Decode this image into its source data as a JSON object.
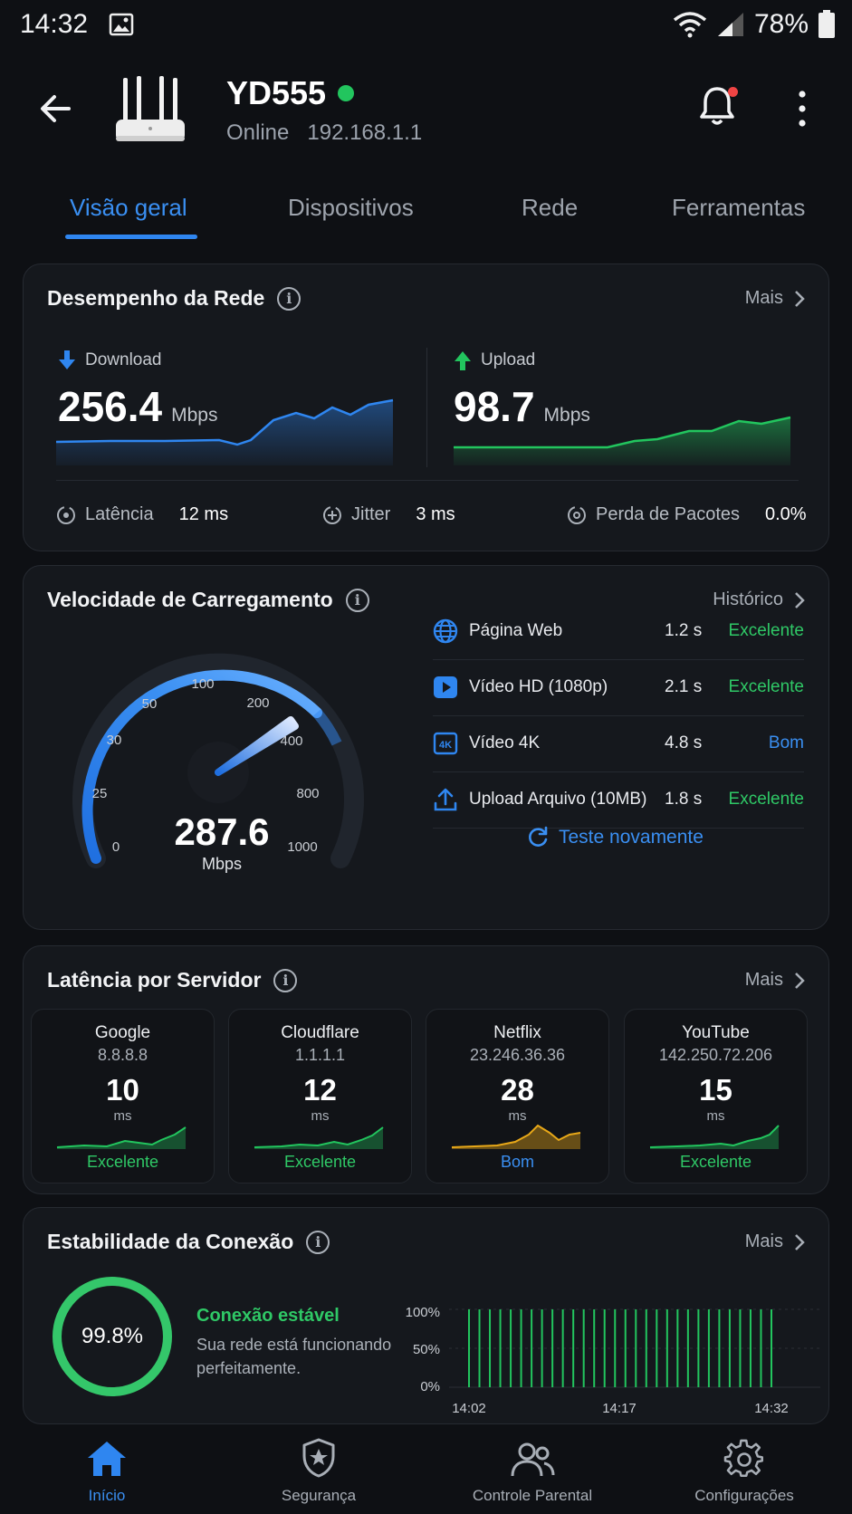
{
  "status_bar": {
    "time": "14:32",
    "battery": "78%"
  },
  "device": {
    "name": "YD555",
    "state": "Online",
    "ip": "192.168.1.1"
  },
  "tabs": [
    {
      "label": "Visão geral",
      "active": true
    },
    {
      "label": "Dispositivos"
    },
    {
      "label": "Rede"
    },
    {
      "label": "Ferramentas"
    }
  ],
  "performance": {
    "title": "Desempenho da Rede",
    "link": "Mais",
    "download": {
      "label": "Download",
      "value": "256.4",
      "unit": "Mbps"
    },
    "upload": {
      "label": "Upload",
      "value": "98.7",
      "unit": "Mbps"
    },
    "latency": {
      "label": "Latência",
      "value": "12 ms"
    },
    "jitter": {
      "label": "Jitter",
      "value": "3 ms"
    },
    "loss": {
      "label": "Perda de Pacotes",
      "value": "0.0%"
    }
  },
  "load_speed": {
    "title": "Velocidade de Carregamento",
    "link": "Histórico",
    "gauge": {
      "value": "287.6",
      "unit": "Mbps",
      "ticks": [
        "0",
        "25",
        "30",
        "50",
        "100",
        "200",
        "400",
        "800",
        "1000"
      ]
    },
    "rows": [
      {
        "label": "Página Web",
        "time": "1.2 s",
        "rating": "Excelente",
        "icon": "globe-icon"
      },
      {
        "label": "Vídeo HD (1080p)",
        "time": "2.1 s",
        "rating": "Excelente",
        "icon": "play-icon"
      },
      {
        "label": "Vídeo 4K",
        "time": "4.8 s",
        "rating": "Bom",
        "icon": "4k-icon"
      },
      {
        "label": "Upload Arquivo (10MB)",
        "time": "1.8 s",
        "rating": "Excelente",
        "icon": "upload-icon"
      }
    ],
    "retry": "Teste novamente"
  },
  "servers": {
    "title": "Latência por Servidor",
    "link": "Mais",
    "items": [
      {
        "name": "Google",
        "ip": "8.8.8.8",
        "ms": "10",
        "unit": "ms",
        "rating": "Excelente"
      },
      {
        "name": "Cloudflare",
        "ip": "1.1.1.1",
        "ms": "12",
        "unit": "ms",
        "rating": "Excelente"
      },
      {
        "name": "Netflix",
        "ip": "23.246.36.36",
        "ms": "28",
        "unit": "ms",
        "rating": "Bom"
      },
      {
        "name": "YouTube",
        "ip": "142.250.72.206",
        "ms": "15",
        "unit": "ms",
        "rating": "Excelente"
      }
    ]
  },
  "stability": {
    "title": "Estabilidade da Conexão",
    "link": "Mais",
    "value": "99.8%",
    "level": 0.998,
    "status": "Conexão estável",
    "description": "Sua rede está funcionando perfeitamente.",
    "y_labels": [
      "100%",
      "50%",
      "0%"
    ],
    "x_labels": [
      "14:02",
      "14:17",
      "14:32"
    ]
  },
  "nav": [
    {
      "label": "Início",
      "active": true,
      "icon": "home-icon"
    },
    {
      "label": "Segurança",
      "icon": "shield-icon"
    },
    {
      "label": "Controle Parental",
      "icon": "users-icon"
    },
    {
      "label": "Configurações",
      "icon": "gear-icon"
    }
  ],
  "colors": {
    "accent": "#2f86f0",
    "good": "#2fc866",
    "ok": "#3a8ff2",
    "warn": "#e8a818"
  }
}
